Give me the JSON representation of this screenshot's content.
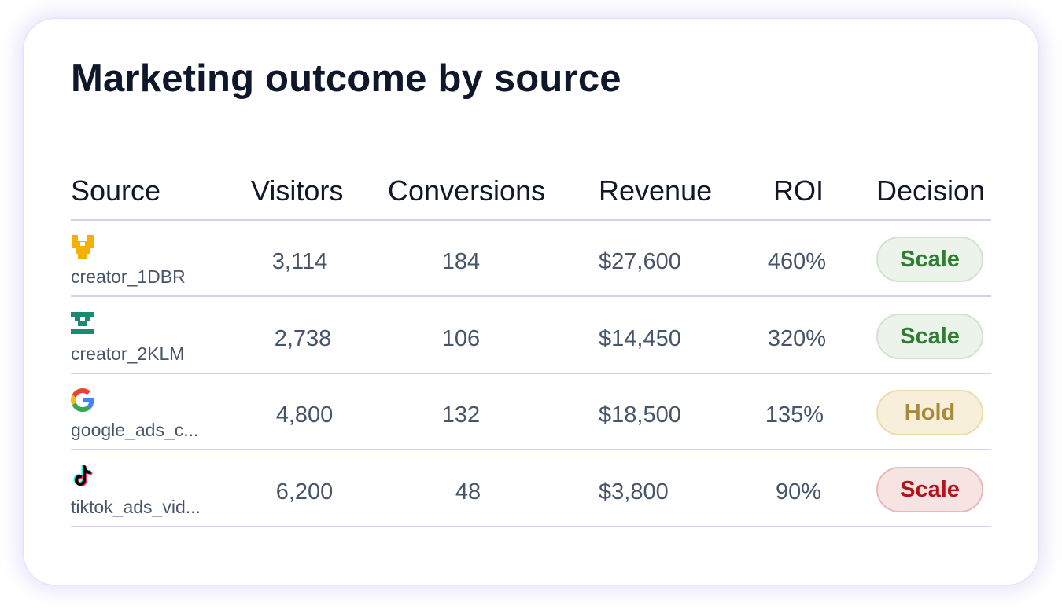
{
  "title": "Marketing outcome by source",
  "columns": {
    "source": "Source",
    "visitors": "Visitors",
    "conversions": "Conversions",
    "revenue": "Revenue",
    "roi": "ROI",
    "decision": "Decision"
  },
  "rows": [
    {
      "icon": "creator-glyph-icon",
      "icon_color": "#f6b100",
      "source": "creator_1DBR",
      "visitors": "3,114",
      "conversions": "184",
      "revenue": "$27,600",
      "roi": "460%",
      "decision": "Scale",
      "decision_tone": "green"
    },
    {
      "icon": "creator-glyph-icon",
      "icon_color": "#1a8a73",
      "source": "creator_2KLM",
      "visitors": "2,738",
      "conversions": "106",
      "revenue": "$14,450",
      "roi": "320%",
      "decision": "Scale",
      "decision_tone": "green"
    },
    {
      "icon": "google-icon",
      "source": "google_ads_c...",
      "visitors": "4,800",
      "conversions": "132",
      "revenue": "$18,500",
      "roi": "135%",
      "decision": "Hold",
      "decision_tone": "amber"
    },
    {
      "icon": "tiktok-icon",
      "source": "tiktok_ads_vid...",
      "visitors": "6,200",
      "conversions": "48",
      "revenue": "$3,800",
      "roi": "90%",
      "decision": "Scale",
      "decision_tone": "red"
    }
  ]
}
